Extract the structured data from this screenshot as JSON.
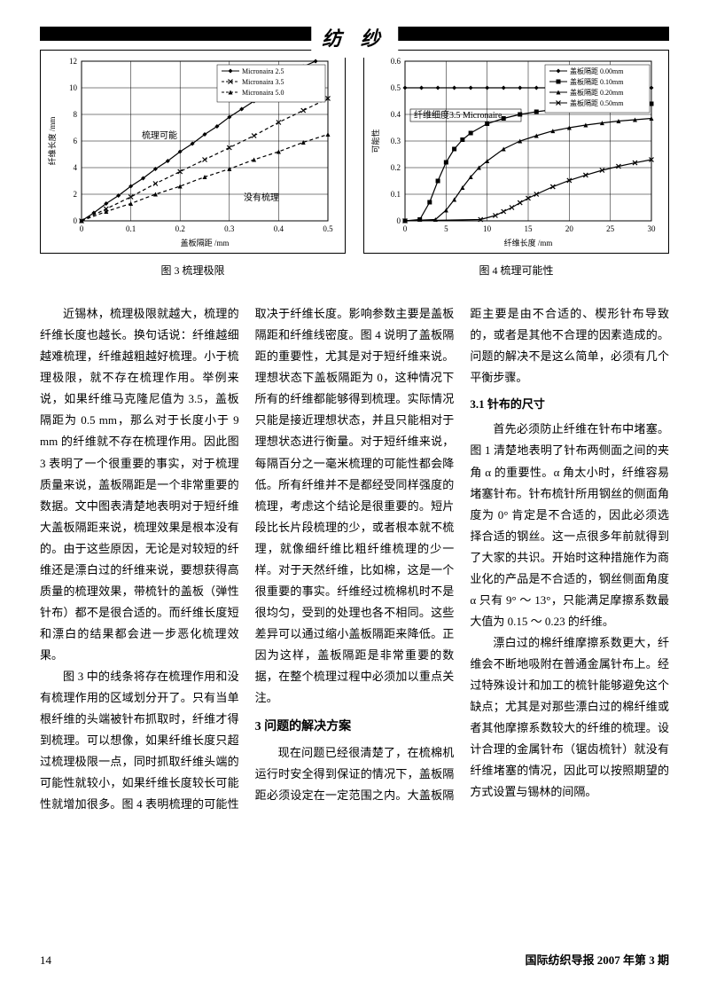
{
  "header": {
    "title": "纺 纱"
  },
  "chart1": {
    "type": "line",
    "title_caption": "图 3  梳理极限",
    "xlabel": "盖板隔距 /mm",
    "ylabel": "纤维长度 /mm",
    "xlim": [
      0,
      0.5
    ],
    "ylim": [
      0,
      12
    ],
    "xticks": [
      0,
      0.1,
      0.2,
      0.3,
      0.4,
      0.5
    ],
    "yticks": [
      0,
      2,
      4,
      6,
      8,
      10,
      12
    ],
    "background_color": "#ffffff",
    "grid_color": "#000000",
    "line_color": "#000000",
    "legend": [
      "Micronaira 2.5",
      "Micronaira 3.5",
      "Micronaira 5.0"
    ],
    "annotations": [
      "梳理可能",
      "没有梳理"
    ],
    "series": [
      {
        "name": "Micronaira 2.5",
        "marker": "diamond",
        "dash": "solid",
        "points": [
          [
            0,
            0
          ],
          [
            0.025,
            0.6
          ],
          [
            0.05,
            1.3
          ],
          [
            0.075,
            1.9
          ],
          [
            0.1,
            2.6
          ],
          [
            0.125,
            3.2
          ],
          [
            0.15,
            3.9
          ],
          [
            0.175,
            4.5
          ],
          [
            0.2,
            5.2
          ],
          [
            0.225,
            5.8
          ],
          [
            0.25,
            6.5
          ],
          [
            0.275,
            7.1
          ],
          [
            0.3,
            7.8
          ],
          [
            0.325,
            8.4
          ],
          [
            0.35,
            9.0
          ],
          [
            0.375,
            9.7
          ],
          [
            0.4,
            10.3
          ],
          [
            0.425,
            11.0
          ],
          [
            0.45,
            11.6
          ],
          [
            0.475,
            12.0
          ]
        ]
      },
      {
        "name": "Micronaira 3.5",
        "marker": "x",
        "dash": "dashed",
        "points": [
          [
            0,
            0
          ],
          [
            0.05,
            0.9
          ],
          [
            0.1,
            1.8
          ],
          [
            0.15,
            2.8
          ],
          [
            0.2,
            3.7
          ],
          [
            0.25,
            4.6
          ],
          [
            0.3,
            5.5
          ],
          [
            0.35,
            6.4
          ],
          [
            0.4,
            7.4
          ],
          [
            0.45,
            8.3
          ],
          [
            0.5,
            9.2
          ]
        ]
      },
      {
        "name": "Micronaira 5.0",
        "marker": "triangle",
        "dash": "dashed",
        "points": [
          [
            0,
            0
          ],
          [
            0.05,
            0.7
          ],
          [
            0.1,
            1.3
          ],
          [
            0.15,
            2.0
          ],
          [
            0.2,
            2.6
          ],
          [
            0.25,
            3.3
          ],
          [
            0.3,
            3.9
          ],
          [
            0.35,
            4.6
          ],
          [
            0.4,
            5.2
          ],
          [
            0.45,
            5.9
          ],
          [
            0.5,
            6.5
          ]
        ]
      }
    ]
  },
  "chart2": {
    "type": "line",
    "title_caption": "图 4  梳理可能性",
    "xlabel": "纤维长度 /mm",
    "ylabel": "可能性",
    "xlim": [
      0,
      30
    ],
    "ylim": [
      0,
      0.6
    ],
    "xticks": [
      0,
      5,
      10,
      15,
      20,
      25,
      30
    ],
    "yticks": [
      0,
      0.1,
      0.2,
      0.3,
      0.4,
      0.5,
      0.6
    ],
    "background_color": "#ffffff",
    "grid_color": "#000000",
    "line_color": "#000000",
    "legend": [
      "盖板隔距 0.00mm",
      "盖板隔距 0.10mm",
      "盖板隔距 0.20mm",
      "盖板隔距 0.50mm"
    ],
    "annotation": "纤维细度3.5 Micronaire",
    "series": [
      {
        "name": "盖板隔距 0.00mm",
        "marker": "diamond",
        "points": [
          [
            0,
            0.5
          ],
          [
            2,
            0.5
          ],
          [
            4,
            0.5
          ],
          [
            6,
            0.5
          ],
          [
            8,
            0.5
          ],
          [
            10,
            0.5
          ],
          [
            12,
            0.5
          ],
          [
            14,
            0.5
          ],
          [
            16,
            0.5
          ],
          [
            18,
            0.5
          ],
          [
            20,
            0.5
          ],
          [
            22,
            0.5
          ],
          [
            24,
            0.5
          ],
          [
            26,
            0.5
          ],
          [
            28,
            0.5
          ],
          [
            30,
            0.5
          ]
        ]
      },
      {
        "name": "盖板隔距 0.10mm",
        "marker": "square",
        "points": [
          [
            0,
            0
          ],
          [
            1.8,
            0.005
          ],
          [
            3,
            0.07
          ],
          [
            4,
            0.15
          ],
          [
            5,
            0.22
          ],
          [
            6,
            0.27
          ],
          [
            7,
            0.305
          ],
          [
            8,
            0.33
          ],
          [
            10,
            0.365
          ],
          [
            12,
            0.385
          ],
          [
            14,
            0.4
          ],
          [
            16,
            0.41
          ],
          [
            18,
            0.418
          ],
          [
            20,
            0.423
          ],
          [
            22,
            0.428
          ],
          [
            24,
            0.432
          ],
          [
            26,
            0.435
          ],
          [
            28,
            0.437
          ],
          [
            30,
            0.44
          ]
        ]
      },
      {
        "name": "盖板隔距 0.20mm",
        "marker": "triangle",
        "points": [
          [
            0,
            0
          ],
          [
            3.7,
            0.005
          ],
          [
            5,
            0.04
          ],
          [
            6,
            0.08
          ],
          [
            7,
            0.125
          ],
          [
            8,
            0.165
          ],
          [
            9,
            0.2
          ],
          [
            10,
            0.225
          ],
          [
            12,
            0.27
          ],
          [
            14,
            0.3
          ],
          [
            16,
            0.32
          ],
          [
            18,
            0.338
          ],
          [
            20,
            0.35
          ],
          [
            22,
            0.36
          ],
          [
            24,
            0.368
          ],
          [
            26,
            0.375
          ],
          [
            28,
            0.38
          ],
          [
            30,
            0.385
          ]
        ]
      },
      {
        "name": "盖板隔距 0.50mm",
        "marker": "x",
        "points": [
          [
            0,
            0
          ],
          [
            9.2,
            0.005
          ],
          [
            11,
            0.02
          ],
          [
            12,
            0.035
          ],
          [
            13,
            0.05
          ],
          [
            14,
            0.068
          ],
          [
            15,
            0.085
          ],
          [
            16,
            0.1
          ],
          [
            18,
            0.128
          ],
          [
            20,
            0.152
          ],
          [
            22,
            0.172
          ],
          [
            24,
            0.19
          ],
          [
            26,
            0.205
          ],
          [
            28,
            0.218
          ],
          [
            30,
            0.23
          ]
        ]
      }
    ]
  },
  "body": {
    "p1": "近锡林，梳理极限就越大，梳理的纤维长度也越长。换句话说：纤维越细越难梳理，纤维越粗越好梳理。小于梳理极限，就不存在梳理作用。举例来说，如果纤维马克隆尼值为 3.5，盖板隔距为 0.5 mm，那么对于长度小于 9 mm 的纤维就不存在梳理作用。因此图 3 表明了一个很重要的事实，对于梳理质量来说，盖板隔距是一个非常重要的数据。文中图表清楚地表明对于短纤维大盖板隔距来说，梳理效果是根本没有的。由于这些原因，无论是对较短的纤维还是漂白过的纤维来说，要想获得高质量的梳理效果，带梳针的盖板（弹性针布）都不是很合适的。而纤维长度短和漂白的结果都会进一步恶化梳理效果。",
    "p2": "图 3 中的线条将存在梳理作用和没有梳理作用的区域划分开了。只有当单根纤维的头端被针布抓取时，纤维才得到梳理。可以想像，如果纤维长度只超过梳理极限一点，同时抓取纤维头端的可能性就较小，如果纤维长度较长可能性就增加很多。图 4 表明梳理的可能性取决于纤维长度。影响参数主要是盖板隔距和纤维线密度。图 4 说明了盖板隔距的重要性，尤其是对于短纤维来说。理想状态下盖板隔距为 0，这种情况下所有的纤维都能够得到梳理。实际情况只能是接近理想状态，并且只能相对于理想状态进行衡量。对于短纤维来说，每隔百分之一毫米梳理的可能性都会降低。所有纤维并不是都经受同样强度的梳理，考虑这个结论是很重要的。短片段比长片段梳理的少，或者根本就不梳理，就像细纤维比粗纤维梳理的少一样。对于天然纤维，比如棉，这是一个很重要的事实。纤维经过梳棉机时不是很均匀，受到的处理也各不相同。这些差异可以通过缩小盖板隔距来降低。正因为这样，盖板隔距是非常重要的数据，在整个梳理过程中必须加以重点关注。",
    "h3": "3  问题的解决方案",
    "p3": "现在问题已经很清楚了，在梳棉机运行时安全得到保证的情况下，盖板隔距必须设定在一定范围之内。大盖板隔距主要是由不合适的、楔形针布导致的，或者是其他不合理的因素造成的。问题的解决不是这么简单，必须有几个平衡步骤。",
    "h4": "3.1  针布的尺寸",
    "p4": "首先必须防止纤维在针布中堵塞。图 1 清楚地表明了针布两侧面之间的夹角 α 的重要性。α 角太小时，纤维容易堵塞针布。针布梳针所用钢丝的侧面角度为 0° 肯定是不合适的，因此必须选择合适的钢丝。这一点很多年前就得到了大家的共识。开始时这种措施作为商业化的产品是不合适的，钢丝侧面角度 α 只有 9° ～ 13°，只能满足摩擦系数最大值为 0.15 ～ 0.23 的纤维。",
    "p5": "漂白过的棉纤维摩擦系数更大，纤维会不断地吸附在普通金属针布上。经过特殊设计和加工的梳针能够避免这个缺点；尤其是对那些漂白过的棉纤维或者其他摩擦系数较大的纤维的梳理。设计合理的金属针布（锯齿梳针）就没有纤维堵塞的情况，因此可以按照期望的方式设置与锡林的间隔。"
  },
  "footer": {
    "page": "14",
    "journal": "国际纺织导报 2007 年第 3 期"
  }
}
